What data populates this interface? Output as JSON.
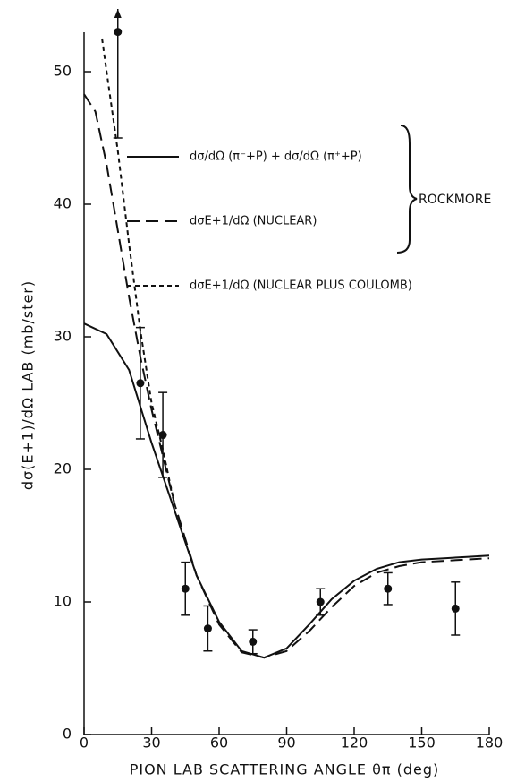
{
  "chart_data": {
    "type": "line",
    "xlabel": "PION LAB SCATTERING ANGLE θπ (deg)",
    "ylabel": "dσ(E+1)/dΩ LAB (mb/ster)",
    "xlim": [
      0,
      180
    ],
    "xticks": [
      0,
      30,
      60,
      90,
      120,
      150,
      180
    ],
    "ylim": [
      0,
      53
    ],
    "yticks": [
      0,
      10,
      20,
      30,
      40,
      50
    ],
    "series": [
      {
        "name": "dσ/dΩ (π⁻+P) + dσ/dΩ (π⁺+P)",
        "color": "#111",
        "dash": "none",
        "x": [
          0,
          10,
          20,
          30,
          40,
          50,
          60,
          70,
          80,
          90,
          100,
          110,
          120,
          130,
          140,
          150,
          160,
          170,
          180
        ],
        "values": [
          31,
          30.2,
          27.5,
          22,
          17,
          12,
          8.5,
          6.3,
          5.8,
          6.5,
          8.3,
          10.2,
          11.6,
          12.5,
          13,
          13.2,
          13.3,
          13.4,
          13.5
        ]
      },
      {
        "name": "dσE+1/dΩ (NUCLEAR)",
        "color": "#111",
        "dash": "14 7",
        "x": [
          0,
          5,
          10,
          15,
          20,
          25,
          30,
          40,
          50,
          60,
          70,
          80,
          90,
          100,
          110,
          120,
          130,
          140,
          150,
          160,
          170,
          180
        ],
        "values": [
          48.3,
          47,
          43,
          38,
          33,
          28.5,
          24.5,
          17.5,
          12,
          8.3,
          6.2,
          5.8,
          6.3,
          7.8,
          9.6,
          11.2,
          12.2,
          12.7,
          13,
          13.1,
          13.2,
          13.3
        ]
      },
      {
        "name": "dσE+1/dΩ (NUCLEAR PLUS COULOMB)",
        "color": "#111",
        "dash": "5 4",
        "x": [
          8,
          10,
          15,
          20,
          25,
          30,
          35,
          40
        ],
        "values": [
          52.5,
          50,
          44,
          37,
          30.5,
          25,
          21.5,
          17.5
        ]
      }
    ],
    "points": {
      "x": [
        15,
        25,
        35,
        45,
        55,
        75,
        105,
        135,
        165
      ],
      "values": [
        53,
        26.5,
        22.6,
        11,
        8,
        7,
        10,
        11,
        9.5
      ],
      "errors": [
        8,
        4.2,
        3.2,
        2,
        1.7,
        0.9,
        1,
        1.2,
        2
      ],
      "open_upper": [
        true,
        false,
        false,
        false,
        false,
        false,
        false,
        false,
        false
      ]
    },
    "annotation": "ROCKMORE"
  }
}
